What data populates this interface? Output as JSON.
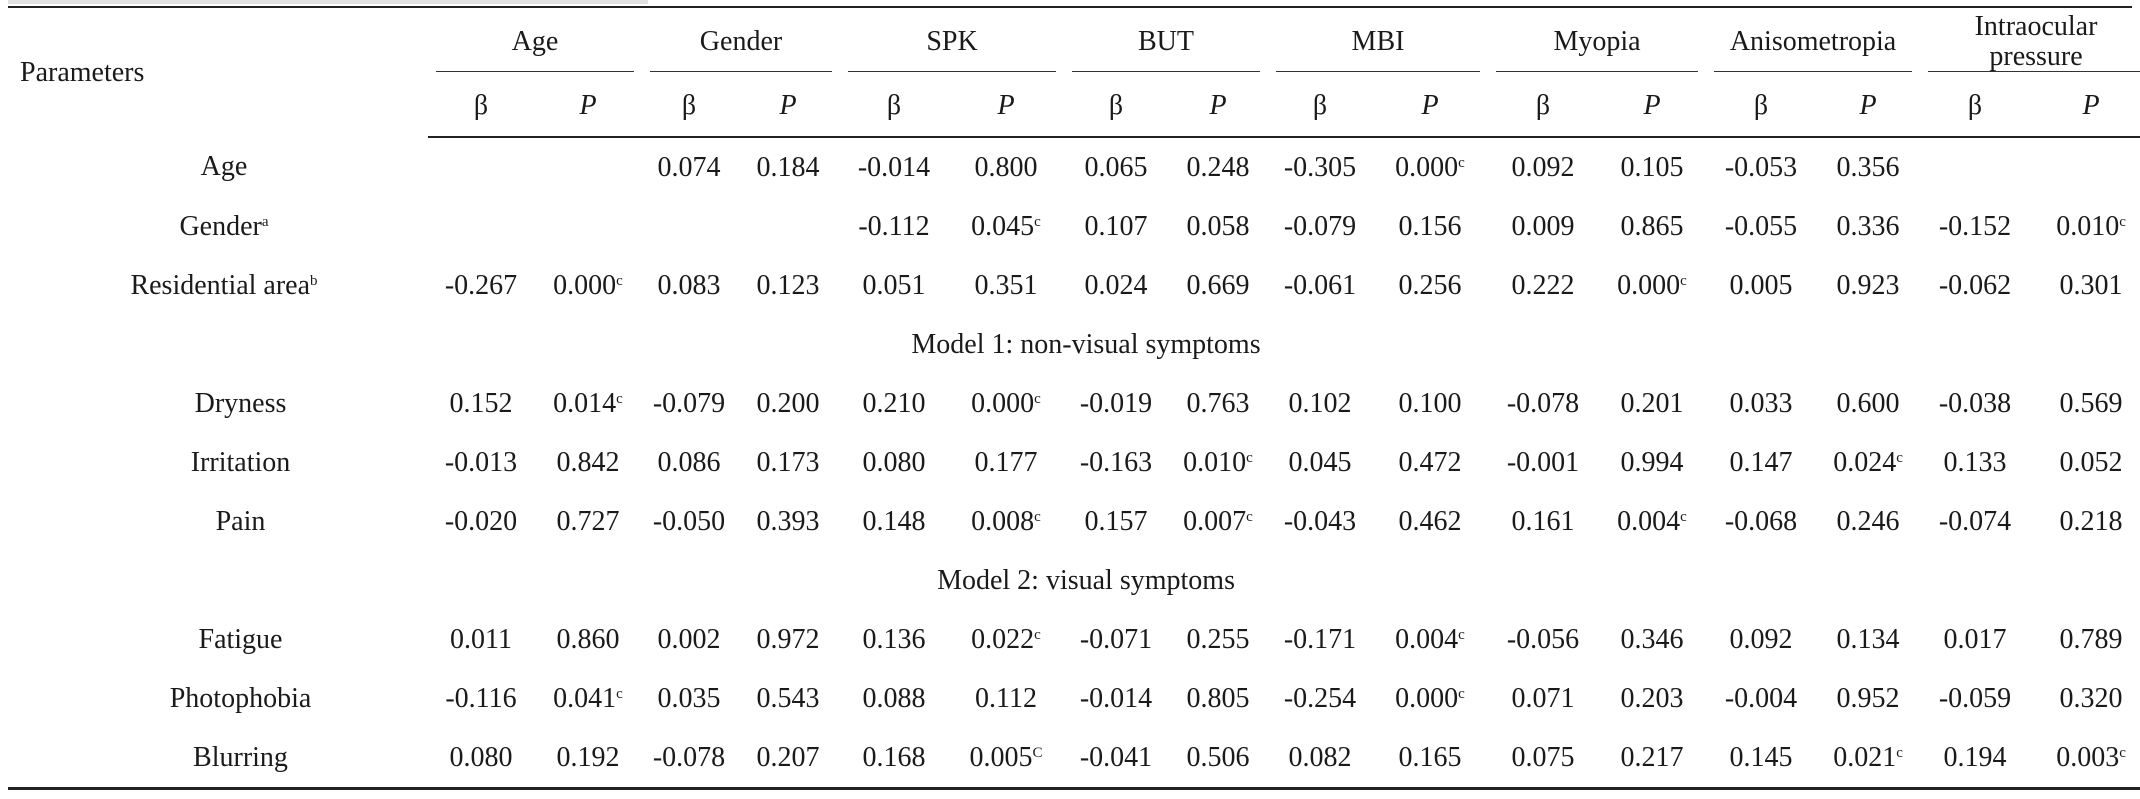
{
  "header": {
    "parameters": "Parameters",
    "groups": [
      "Age",
      "Gender",
      "SPK",
      "BUT",
      "MBI",
      "Myopia",
      "Anisometropia",
      "Intraocular pressure"
    ],
    "beta": "β",
    "p": "P"
  },
  "rows": [
    {
      "type": "data",
      "label": "Age",
      "sup": "",
      "indent": false,
      "cells": [
        [
          "",
          ""
        ],
        [
          "",
          ""
        ],
        [
          "0.074",
          ""
        ],
        [
          "0.184",
          ""
        ],
        [
          "-0.014",
          ""
        ],
        [
          "0.800",
          ""
        ],
        [
          "0.065",
          ""
        ],
        [
          "0.248",
          ""
        ],
        [
          "-0.305",
          ""
        ],
        [
          "0.000",
          "c"
        ],
        [
          "0.092",
          ""
        ],
        [
          "0.105",
          ""
        ],
        [
          "-0.053",
          ""
        ],
        [
          "0.356",
          ""
        ],
        [
          "",
          ""
        ],
        [
          "",
          ""
        ]
      ]
    },
    {
      "type": "data",
      "label": "Gender",
      "sup": "a",
      "indent": false,
      "cells": [
        [
          "",
          ""
        ],
        [
          "",
          ""
        ],
        [
          "",
          ""
        ],
        [
          "",
          ""
        ],
        [
          "-0.112",
          ""
        ],
        [
          "0.045",
          "c"
        ],
        [
          "0.107",
          ""
        ],
        [
          "0.058",
          ""
        ],
        [
          "-0.079",
          ""
        ],
        [
          "0.156",
          ""
        ],
        [
          "0.009",
          ""
        ],
        [
          "0.865",
          ""
        ],
        [
          "-0.055",
          ""
        ],
        [
          "0.336",
          ""
        ],
        [
          "-0.152",
          ""
        ],
        [
          "0.010",
          "c"
        ]
      ]
    },
    {
      "type": "data",
      "label": "Residential area",
      "sup": "b",
      "indent": false,
      "cells": [
        [
          "-0.267",
          ""
        ],
        [
          "0.000",
          "c"
        ],
        [
          "0.083",
          ""
        ],
        [
          "0.123",
          ""
        ],
        [
          "0.051",
          ""
        ],
        [
          "0.351",
          ""
        ],
        [
          "0.024",
          ""
        ],
        [
          "0.669",
          ""
        ],
        [
          "-0.061",
          ""
        ],
        [
          "0.256",
          ""
        ],
        [
          "0.222",
          ""
        ],
        [
          "0.000",
          "c"
        ],
        [
          "0.005",
          ""
        ],
        [
          "0.923",
          ""
        ],
        [
          "-0.062",
          ""
        ],
        [
          "0.301",
          ""
        ]
      ]
    },
    {
      "type": "section",
      "label": "Model 1: non-visual symptoms"
    },
    {
      "type": "data",
      "label": "Dryness",
      "sup": "",
      "indent": true,
      "cells": [
        [
          "0.152",
          ""
        ],
        [
          "0.014",
          "c"
        ],
        [
          "-0.079",
          ""
        ],
        [
          "0.200",
          ""
        ],
        [
          "0.210",
          ""
        ],
        [
          "0.000",
          "c"
        ],
        [
          "-0.019",
          ""
        ],
        [
          "0.763",
          ""
        ],
        [
          "0.102",
          ""
        ],
        [
          "0.100",
          ""
        ],
        [
          "-0.078",
          ""
        ],
        [
          "0.201",
          ""
        ],
        [
          "0.033",
          ""
        ],
        [
          "0.600",
          ""
        ],
        [
          "-0.038",
          ""
        ],
        [
          "0.569",
          ""
        ]
      ]
    },
    {
      "type": "data",
      "label": "Irritation",
      "sup": "",
      "indent": true,
      "cells": [
        [
          "-0.013",
          ""
        ],
        [
          "0.842",
          ""
        ],
        [
          "0.086",
          ""
        ],
        [
          "0.173",
          ""
        ],
        [
          "0.080",
          ""
        ],
        [
          "0.177",
          ""
        ],
        [
          "-0.163",
          ""
        ],
        [
          "0.010",
          "c"
        ],
        [
          "0.045",
          ""
        ],
        [
          "0.472",
          ""
        ],
        [
          "-0.001",
          ""
        ],
        [
          "0.994",
          ""
        ],
        [
          "0.147",
          ""
        ],
        [
          "0.024",
          "c"
        ],
        [
          "0.133",
          ""
        ],
        [
          "0.052",
          ""
        ]
      ]
    },
    {
      "type": "data",
      "label": "Pain",
      "sup": "",
      "indent": true,
      "cells": [
        [
          "-0.020",
          ""
        ],
        [
          "0.727",
          ""
        ],
        [
          "-0.050",
          ""
        ],
        [
          "0.393",
          ""
        ],
        [
          "0.148",
          ""
        ],
        [
          "0.008",
          "c"
        ],
        [
          "0.157",
          ""
        ],
        [
          "0.007",
          "c"
        ],
        [
          "-0.043",
          ""
        ],
        [
          "0.462",
          ""
        ],
        [
          "0.161",
          ""
        ],
        [
          "0.004",
          "c"
        ],
        [
          "-0.068",
          ""
        ],
        [
          "0.246",
          ""
        ],
        [
          "-0.074",
          ""
        ],
        [
          "0.218",
          ""
        ]
      ]
    },
    {
      "type": "section",
      "label": "Model 2: visual symptoms"
    },
    {
      "type": "data",
      "label": "Fatigue",
      "sup": "",
      "indent": true,
      "cells": [
        [
          "0.011",
          ""
        ],
        [
          "0.860",
          ""
        ],
        [
          "0.002",
          ""
        ],
        [
          "0.972",
          ""
        ],
        [
          "0.136",
          ""
        ],
        [
          "0.022",
          "c"
        ],
        [
          "-0.071",
          ""
        ],
        [
          "0.255",
          ""
        ],
        [
          "-0.171",
          ""
        ],
        [
          "0.004",
          "c"
        ],
        [
          "-0.056",
          ""
        ],
        [
          "0.346",
          ""
        ],
        [
          "0.092",
          ""
        ],
        [
          "0.134",
          ""
        ],
        [
          "0.017",
          ""
        ],
        [
          "0.789",
          ""
        ]
      ]
    },
    {
      "type": "data",
      "label": "Photophobia",
      "sup": "",
      "indent": true,
      "cells": [
        [
          "-0.116",
          ""
        ],
        [
          "0.041",
          "c"
        ],
        [
          "0.035",
          ""
        ],
        [
          "0.543",
          ""
        ],
        [
          "0.088",
          ""
        ],
        [
          "0.112",
          ""
        ],
        [
          "-0.014",
          ""
        ],
        [
          "0.805",
          ""
        ],
        [
          "-0.254",
          ""
        ],
        [
          "0.000",
          "c"
        ],
        [
          "0.071",
          ""
        ],
        [
          "0.203",
          ""
        ],
        [
          "-0.004",
          ""
        ],
        [
          "0.952",
          ""
        ],
        [
          "-0.059",
          ""
        ],
        [
          "0.320",
          ""
        ]
      ]
    },
    {
      "type": "data",
      "label": "Blurring",
      "sup": "",
      "indent": true,
      "cells": [
        [
          "0.080",
          ""
        ],
        [
          "0.192",
          ""
        ],
        [
          "-0.078",
          ""
        ],
        [
          "0.207",
          ""
        ],
        [
          "0.168",
          ""
        ],
        [
          "0.005",
          "C"
        ],
        [
          "-0.041",
          ""
        ],
        [
          "0.506",
          ""
        ],
        [
          "0.082",
          ""
        ],
        [
          "0.165",
          ""
        ],
        [
          "0.075",
          ""
        ],
        [
          "0.217",
          ""
        ],
        [
          "0.145",
          ""
        ],
        [
          "0.021",
          "c"
        ],
        [
          "0.194",
          ""
        ],
        [
          "0.003",
          "c"
        ]
      ]
    }
  ]
}
